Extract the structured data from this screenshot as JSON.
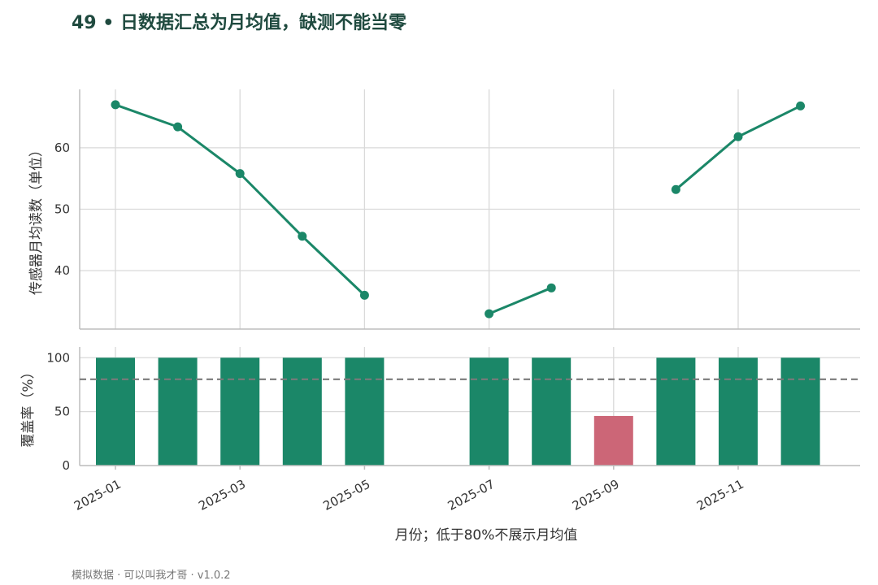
{
  "title": "49 • 日数据汇总为月均值，缺测不能当零",
  "footer": "模拟数据 · 可以叫我才哥 · v1.0.2",
  "colors": {
    "ok": "#1b8768",
    "low": "#cc6677",
    "threshold": "#7a7a7a",
    "grid": "#d9d9d9"
  },
  "chart_data": [
    {
      "type": "line",
      "ylabel": "传感器月均读数（单位）",
      "x": [
        "2025-01",
        "2025-02",
        "2025-03",
        "2025-04",
        "2025-05",
        "2025-06",
        "2025-07",
        "2025-08",
        "2025-09",
        "2025-10",
        "2025-11",
        "2025-12"
      ],
      "values": [
        67.0,
        63.4,
        55.8,
        45.6,
        36.0,
        null,
        33.0,
        37.2,
        null,
        53.2,
        61.8,
        66.8
      ],
      "yticks": [
        40,
        50,
        60
      ],
      "ylim": [
        30.5,
        69.5
      ],
      "grid": true
    },
    {
      "type": "bar",
      "ylabel": "覆盖率（%）",
      "xlabel": "月份；低于80%不展示月均值",
      "x": [
        "2025-01",
        "2025-02",
        "2025-03",
        "2025-04",
        "2025-05",
        "2025-06",
        "2025-07",
        "2025-08",
        "2025-09",
        "2025-10",
        "2025-11",
        "2025-12"
      ],
      "values": [
        100,
        100,
        100,
        100,
        100,
        0,
        100,
        100,
        46,
        100,
        100,
        100
      ],
      "threshold": 80,
      "yticks": [
        0,
        50,
        100
      ],
      "ylim": [
        0,
        110
      ],
      "xtick_labels": [
        "2025-01",
        "2025-03",
        "2025-05",
        "2025-07",
        "2025-09",
        "2025-11"
      ],
      "grid": true
    }
  ]
}
